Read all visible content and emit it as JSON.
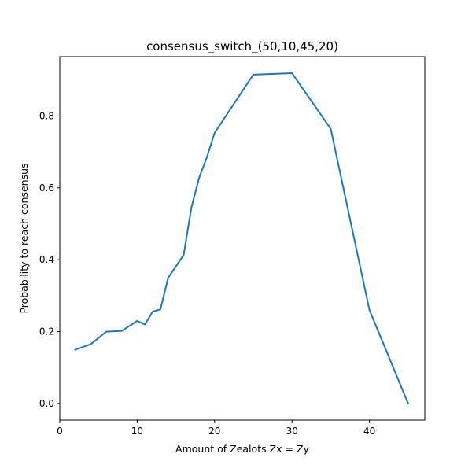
{
  "chart_data": {
    "type": "line",
    "title": "consensus_switch_(50,10,45,20)",
    "xlabel": "Amount of Zealots Zx = Zy",
    "ylabel": "Probability to reach consensus",
    "xlim": [
      0,
      47.15
    ],
    "ylim": [
      -0.046,
      0.965
    ],
    "xticks": [
      0,
      10,
      20,
      30,
      40
    ],
    "yticks": [
      0.0,
      0.2,
      0.4,
      0.6,
      0.8
    ],
    "xtick_labels": [
      "0",
      "10",
      "20",
      "30",
      "40"
    ],
    "ytick_labels": [
      "0.0",
      "0.2",
      "0.4",
      "0.6",
      "0.8"
    ],
    "grid": false,
    "series": [
      {
        "color": "#1f77b4",
        "x": [
          2,
          4,
          6,
          8,
          10,
          11,
          12,
          13,
          14,
          16,
          17,
          18,
          19,
          20,
          25,
          30,
          35,
          40,
          45
        ],
        "y": [
          0.15,
          0.165,
          0.2,
          0.202,
          0.23,
          0.22,
          0.256,
          0.262,
          0.35,
          0.413,
          0.545,
          0.628,
          0.685,
          0.753,
          0.915,
          0.919,
          0.764,
          0.26,
          0.0
        ]
      }
    ]
  }
}
